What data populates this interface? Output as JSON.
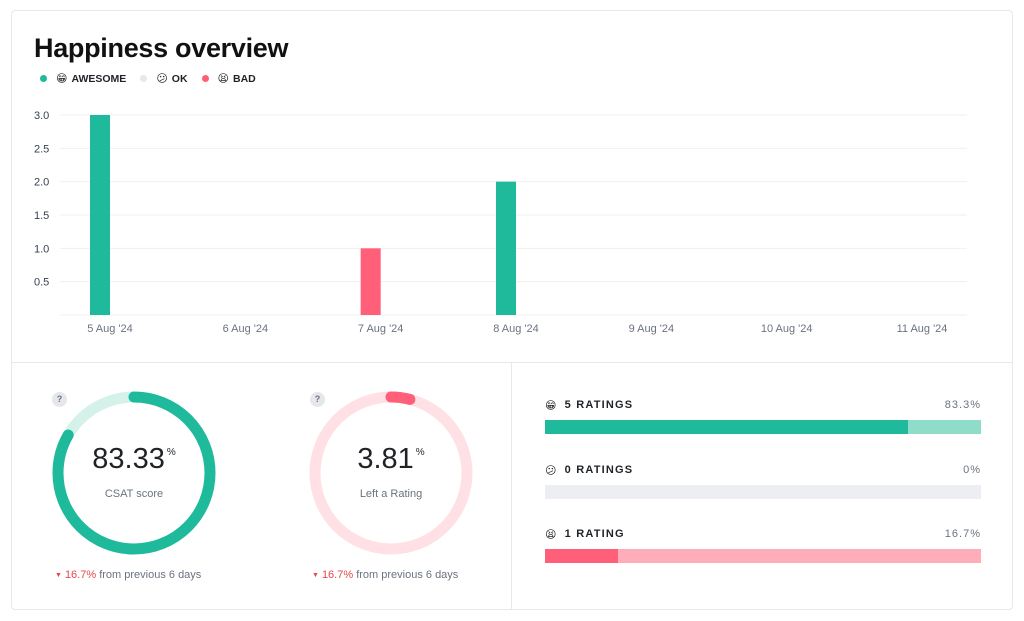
{
  "title": "Happiness overview",
  "legend": [
    {
      "icon": "grinning-face-icon",
      "emoji": "😁",
      "label": "AWESOME",
      "color": "#1fba9c"
    },
    {
      "icon": "confused-face-icon",
      "emoji": "😕",
      "label": "OK",
      "color": "#e6e8eb"
    },
    {
      "icon": "tired-face-icon",
      "emoji": "😫",
      "label": "BAD",
      "color": "#ff5f78"
    }
  ],
  "chart_data": {
    "type": "bar",
    "categories": [
      "5 Aug '24",
      "6 Aug '24",
      "7 Aug '24",
      "8 Aug '24",
      "9 Aug '24",
      "10 Aug '24",
      "11 Aug '24"
    ],
    "series": [
      {
        "name": "AWESOME",
        "color": "#1fba9c",
        "values": [
          3,
          0,
          0,
          2,
          0,
          0,
          0
        ]
      },
      {
        "name": "OK",
        "color": "#e6e8eb",
        "values": [
          0,
          0,
          0,
          0,
          0,
          0,
          0
        ]
      },
      {
        "name": "BAD",
        "color": "#ff5f78",
        "values": [
          0,
          0,
          1,
          0,
          0,
          0,
          0
        ]
      }
    ],
    "yticks": [
      "3.0",
      "2.5",
      "2.0",
      "1.5",
      "1.0",
      "0.5"
    ],
    "ylim": [
      0,
      3
    ],
    "grid": true,
    "legend_position": "top-left"
  },
  "csat": {
    "value": "83.33",
    "unit": "%",
    "label": "CSAT score",
    "fill_fraction": 0.833,
    "delta": "16.7%",
    "delta_text": "from previous 6 days",
    "color": "#1fba9c",
    "track_color": "#d4f1ea"
  },
  "left_rating": {
    "value": "3.81",
    "unit": "%",
    "label": "Left a Rating",
    "fill_fraction": 0.04,
    "delta": "16.7%",
    "delta_text": "from previous 6 days",
    "color": "#ff5f78",
    "track_color": "#ffe0e4"
  },
  "help_label": "?",
  "ratings": [
    {
      "icon": "grinning-face-icon",
      "emoji": "😁",
      "title": "5 RATINGS",
      "pct": "83.3%",
      "fraction": 0.833,
      "fill": "#1fba9c",
      "track": "#8fdcc9"
    },
    {
      "icon": "confused-face-icon",
      "emoji": "😕",
      "title": "0 RATINGS",
      "pct": "0%",
      "fraction": 0,
      "fill": "#e6e8eb",
      "track": "#eceef3"
    },
    {
      "icon": "tired-face-icon",
      "emoji": "😫",
      "title": "1 RATING",
      "pct": "16.7%",
      "fraction": 0.167,
      "fill": "#ff5f78",
      "track": "#ffadb9"
    }
  ]
}
